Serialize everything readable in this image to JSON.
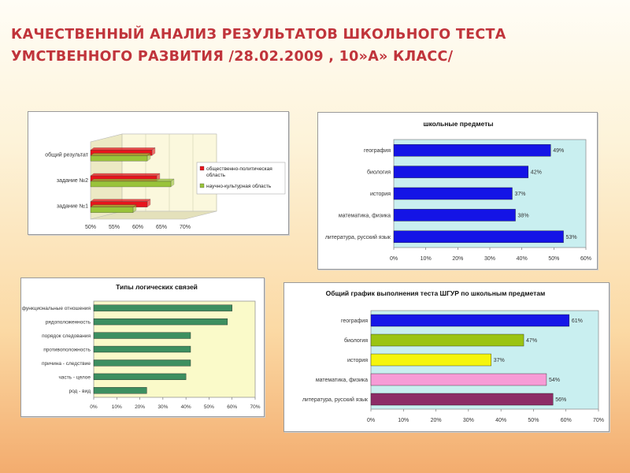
{
  "slide": {
    "title": "КАЧЕСТВЕННЫЙ АНАЛИЗ РЕЗУЛЬТАТОВ ШКОЛЬНОГО ТЕСТА УМСТВЕННОГО РАЗВИТИЯ  /28.02.2009 , 10»А» КЛАСС/"
  },
  "chart_data": [
    {
      "id": "areas",
      "type": "bar",
      "orientation": "horizontal",
      "title": "",
      "categories": [
        "общий результат",
        "задание №2",
        "задание №1"
      ],
      "series": [
        {
          "name": "общественно-политическая область",
          "color": "#e8141c",
          "values": [
            63,
            64,
            62
          ]
        },
        {
          "name": "научно-культурная область",
          "color": "#99c33a",
          "values": [
            62,
            67,
            59
          ]
        }
      ],
      "xlim": [
        50,
        70
      ],
      "ticks": [
        "50%",
        "55%",
        "60%",
        "65%",
        "70%"
      ],
      "legend": "right"
    },
    {
      "id": "subjects",
      "type": "bar",
      "orientation": "horizontal",
      "title": "школьные предметы",
      "categories": [
        "география",
        "биология",
        "история",
        "математика, физика",
        "литература, русский язык"
      ],
      "values": [
        49,
        42,
        37,
        38,
        53
      ],
      "labels": [
        "49%",
        "42%",
        "37%",
        "38%",
        "53%"
      ],
      "color": "#1414e6",
      "xlim": [
        0,
        60
      ],
      "ticks": [
        "0%",
        "10%",
        "20%",
        "30%",
        "40%",
        "50%",
        "60%"
      ]
    },
    {
      "id": "logic",
      "type": "bar",
      "orientation": "horizontal",
      "title": "Типы логических связей",
      "categories": [
        "функциональные отношения",
        "рядоположенность",
        "порядок следования",
        "противоположность",
        "причина - следствие",
        "часть - целое",
        "род - вид"
      ],
      "values": [
        60,
        58,
        42,
        42,
        42,
        40,
        23
      ],
      "color": "#3d8f60",
      "xlim": [
        0,
        70
      ],
      "ticks": [
        "0%",
        "10%",
        "20%",
        "30%",
        "40%",
        "50%",
        "60%",
        "70%"
      ]
    },
    {
      "id": "overall",
      "type": "bar",
      "orientation": "horizontal",
      "title": "Общий график выполнения теста ШГУР по школьным предметам",
      "categories": [
        "география",
        "биология",
        "история",
        "математика, физика",
        "литература, русский язык"
      ],
      "values": [
        61,
        47,
        37,
        54,
        56
      ],
      "labels": [
        "61%",
        "47%",
        "37%",
        "54%",
        "56%"
      ],
      "colors": [
        "#1616e8",
        "#9bc412",
        "#f5f50c",
        "#f79bd6",
        "#8d2c66"
      ],
      "xlim": [
        0,
        70
      ],
      "ticks": [
        "0%",
        "10%",
        "20%",
        "30%",
        "40%",
        "50%",
        "60%",
        "70%"
      ]
    }
  ]
}
